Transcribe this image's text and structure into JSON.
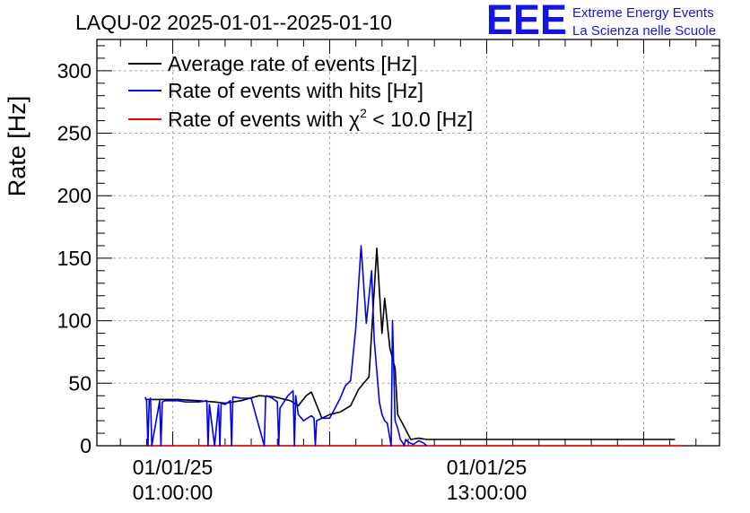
{
  "logo": {
    "mark": "EEE",
    "line1": "Extreme Energy Events",
    "line2": "La Scienza nelle Scuole",
    "color": "#1414e6"
  },
  "chart_data": {
    "type": "line",
    "title": "LAQU-02 2025-01-01--2025-01-10",
    "ylabel": "Rate [Hz]",
    "xlabel": "",
    "ylim": [
      0,
      325
    ],
    "xlim_hours": [
      -1.9,
      21.9
    ],
    "grid": true,
    "legend_position": "top-left",
    "yticks": [
      0,
      50,
      100,
      150,
      200,
      250,
      300
    ],
    "xtick_labels": [
      {
        "hour": 1,
        "line1": "01/01/25",
        "line2": "01:00:00"
      },
      {
        "hour": 13,
        "line1": "01/01/25",
        "line2": "13:00:00"
      }
    ],
    "legend": {
      "black": "Average rate of events [Hz]",
      "blue": "Rate of events with hits [Hz]",
      "red_prefix": "Rate of events with ",
      "red_symbol": "χ",
      "red_sup": "2",
      "red_suffix": " < 10.0 [Hz]"
    },
    "series": [
      {
        "name": "Average rate of events [Hz]",
        "color": "#000000",
        "x_hours": [
          -0.05,
          0.5,
          1.2,
          2.0,
          2.6,
          3.0,
          3.6,
          4.3,
          4.9,
          5.5,
          5.8,
          6.1,
          6.3,
          6.7,
          7.0,
          7.4,
          7.8,
          8.1,
          8.3,
          8.5,
          8.8,
          9.0,
          9.1,
          9.3,
          9.5,
          9.6,
          9.8,
          10.1,
          10.4,
          10.7,
          11.0,
          12.0,
          13.0,
          14.5,
          16.0,
          17.5,
          19.0,
          20.2
        ],
        "y": [
          37,
          37,
          37,
          36,
          35,
          34,
          36,
          40,
          39,
          36,
          32,
          40,
          43,
          22,
          25,
          27,
          32,
          45,
          50,
          55,
          158,
          90,
          118,
          78,
          62,
          25,
          17,
          5,
          6,
          5,
          5,
          5,
          5,
          5,
          5,
          5,
          5,
          5
        ]
      },
      {
        "name": "Rate of events with hits [Hz]",
        "color": "#0000ee",
        "x_hours": [
          -0.05,
          0.0,
          0.05,
          0.1,
          0.15,
          0.2,
          0.5,
          0.55,
          0.6,
          0.7,
          1.2,
          1.5,
          2.0,
          2.3,
          2.35,
          2.4,
          2.6,
          2.75,
          2.8,
          2.85,
          3.0,
          3.2,
          3.25,
          3.3,
          3.6,
          4.0,
          4.5,
          4.55,
          4.6,
          4.8,
          5.0,
          5.05,
          5.1,
          5.4,
          5.6,
          5.65,
          5.7,
          5.8,
          6.0,
          6.3,
          6.4,
          6.45,
          6.5,
          6.7,
          7.0,
          7.2,
          7.4,
          7.6,
          7.8,
          8.0,
          8.2,
          8.4,
          8.6,
          8.7,
          8.8,
          8.9,
          9.0,
          9.1,
          9.2,
          9.35,
          9.4,
          9.5,
          9.6,
          9.7,
          9.8,
          9.85,
          9.9,
          10.0,
          10.2,
          10.4,
          10.5,
          10.6,
          10.7
        ],
        "y": [
          39,
          36,
          0,
          36,
          38,
          0,
          36,
          0,
          35,
          36,
          36,
          35,
          35,
          36,
          0,
          33,
          0,
          33,
          0,
          34,
          33,
          36,
          0,
          39,
          38,
          38,
          0,
          39,
          40,
          38,
          35,
          0,
          30,
          40,
          44,
          0,
          40,
          25,
          20,
          24,
          22,
          0,
          20,
          22,
          22,
          30,
          38,
          48,
          52,
          95,
          160,
          98,
          140,
          85,
          60,
          35,
          25,
          20,
          18,
          0,
          100,
          20,
          14,
          5,
          2,
          0,
          5,
          3,
          1,
          4,
          3,
          2,
          0
        ]
      },
      {
        "name": "Rate of events with χ² < 10.0 [Hz]",
        "color": "#ee0000",
        "x_hours": [
          0.0,
          20.5
        ],
        "y": [
          0,
          0
        ]
      }
    ]
  }
}
